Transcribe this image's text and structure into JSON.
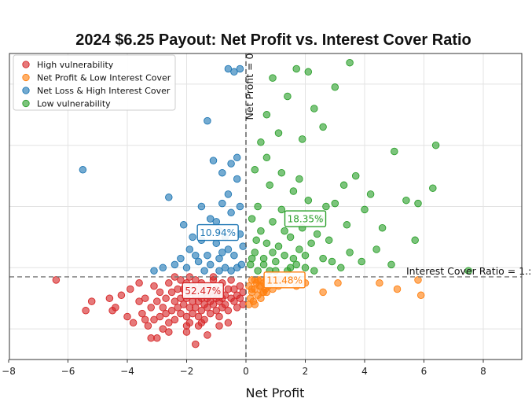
{
  "chart_data": {
    "type": "scatter",
    "title": "2024 $6.25 Payout: Net Profit vs. Interest Cover Ratio",
    "xlabel": "Net Profit",
    "ylabel": "",
    "xlim": [
      -8,
      9.5
    ],
    "ylim": [
      0,
      10
    ],
    "x_ticks": [
      -8,
      -6,
      -4,
      -2,
      0,
      2,
      4,
      6,
      8
    ],
    "x_tick_labels": [
      "−8",
      "−6",
      "−4",
      "−2",
      "0",
      "2",
      "4",
      "6",
      "8"
    ],
    "y_gridlines": [
      1,
      3,
      5,
      7,
      9
    ],
    "grid": true,
    "reference_lines": {
      "vertical": {
        "x": 0,
        "label": "Net Profit = 0"
      },
      "horizontal": {
        "y": 2.7,
        "label": "Interest Cover Ratio = 1.:"
      }
    },
    "legend": {
      "position": "top-left",
      "entries": [
        {
          "name": "High vulnerability",
          "color": "#d62728"
        },
        {
          "name": "Net Profit & Low Interest Cover",
          "color": "#ff7f0e"
        },
        {
          "name": "Net Loss & High Interest Cover",
          "color": "#1f77b4"
        },
        {
          "name": "Low vulnerability",
          "color": "#2ca02c"
        }
      ]
    },
    "annotations": [
      {
        "text": "52.47%",
        "x": -1.45,
        "y": 2.25,
        "color": "#d62728"
      },
      {
        "text": "11.48%",
        "x": 1.3,
        "y": 2.6,
        "color": "#ff7f0e"
      },
      {
        "text": "10.94%",
        "x": -0.95,
        "y": 4.15,
        "color": "#1f77b4"
      },
      {
        "text": "18.35%",
        "x": 2.0,
        "y": 4.6,
        "color": "#2ca02c"
      }
    ],
    "series": [
      {
        "name": "High vulnerability",
        "color": "#d62728",
        "points": [
          [
            -6.4,
            2.6
          ],
          [
            -5.4,
            1.6
          ],
          [
            -5.2,
            1.9
          ],
          [
            -4.6,
            2.0
          ],
          [
            -4.4,
            1.7
          ],
          [
            -4.2,
            2.1
          ],
          [
            -4.0,
            1.4
          ],
          [
            -3.9,
            2.3
          ],
          [
            -3.8,
            1.2
          ],
          [
            -3.6,
            1.9
          ],
          [
            -3.5,
            1.5
          ],
          [
            -3.4,
            2.0
          ],
          [
            -3.3,
            1.1
          ],
          [
            -3.2,
            1.7
          ],
          [
            -3.1,
            2.4
          ],
          [
            -3.0,
            1.9
          ],
          [
            -2.9,
            1.4
          ],
          [
            -2.9,
            2.2
          ],
          [
            -2.8,
            1.7
          ],
          [
            -2.7,
            2.0
          ],
          [
            -2.6,
            1.2
          ],
          [
            -2.6,
            2.5
          ],
          [
            -2.5,
            1.6
          ],
          [
            -2.5,
            2.2
          ],
          [
            -2.4,
            1.9
          ],
          [
            -2.4,
            1.3
          ],
          [
            -2.3,
            2.3
          ],
          [
            -2.3,
            1.7
          ],
          [
            -2.2,
            2.0
          ],
          [
            -2.2,
            1.5
          ],
          [
            -2.2,
            2.6
          ],
          [
            -2.1,
            1.8
          ],
          [
            -2.1,
            2.3
          ],
          [
            -2.0,
            1.4
          ],
          [
            -2.0,
            2.0
          ],
          [
            -2.0,
            2.5
          ],
          [
            -1.9,
            1.7
          ],
          [
            -1.9,
            2.2
          ],
          [
            -1.9,
            1.2
          ],
          [
            -1.8,
            1.9
          ],
          [
            -1.8,
            2.4
          ],
          [
            -1.8,
            1.5
          ],
          [
            -1.7,
            2.1
          ],
          [
            -1.7,
            1.7
          ],
          [
            -1.7,
            2.6
          ],
          [
            -1.6,
            1.9
          ],
          [
            -1.6,
            2.3
          ],
          [
            -1.6,
            1.4
          ],
          [
            -1.5,
            2.0
          ],
          [
            -1.5,
            1.6
          ],
          [
            -1.5,
            2.5
          ],
          [
            -1.4,
            1.8
          ],
          [
            -1.4,
            2.2
          ],
          [
            -1.4,
            1.3
          ],
          [
            -1.3,
            2.0
          ],
          [
            -1.3,
            1.7
          ],
          [
            -1.3,
            2.4
          ],
          [
            -1.2,
            1.9
          ],
          [
            -1.2,
            2.2
          ],
          [
            -1.2,
            1.5
          ],
          [
            -1.1,
            2.1
          ],
          [
            -1.1,
            1.8
          ],
          [
            -1.1,
            2.6
          ],
          [
            -1.0,
            2.0
          ],
          [
            -1.0,
            1.6
          ],
          [
            -1.0,
            2.3
          ],
          [
            -0.9,
            1.9
          ],
          [
            -0.9,
            2.2
          ],
          [
            -0.9,
            1.4
          ],
          [
            -0.8,
            2.0
          ],
          [
            -0.8,
            1.7
          ],
          [
            -0.8,
            2.5
          ],
          [
            -0.7,
            2.1
          ],
          [
            -0.7,
            1.8
          ],
          [
            -0.6,
            2.3
          ],
          [
            -0.6,
            1.6
          ],
          [
            -0.5,
            2.0
          ],
          [
            -0.5,
            2.6
          ],
          [
            -0.4,
            1.9
          ],
          [
            -0.4,
            2.3
          ],
          [
            -0.3,
            2.1
          ],
          [
            -0.3,
            1.7
          ],
          [
            -0.2,
            2.4
          ],
          [
            -0.2,
            2.0
          ],
          [
            -0.1,
            2.2
          ],
          [
            -0.1,
            1.8
          ],
          [
            -2.0,
            0.9
          ],
          [
            -1.6,
            1.1
          ],
          [
            -1.3,
            0.8
          ],
          [
            -2.8,
            1.0
          ],
          [
            -3.4,
            1.3
          ],
          [
            -0.6,
            1.2
          ],
          [
            -1.9,
            2.7
          ],
          [
            -1.1,
            2.7
          ],
          [
            -2.4,
            2.7
          ],
          [
            -3.6,
            2.5
          ],
          [
            -4.5,
            1.6
          ],
          [
            -2.7,
            1.5
          ],
          [
            -1.5,
            1.2
          ],
          [
            -0.9,
            1.1
          ],
          [
            -2.6,
            0.9
          ],
          [
            -3.0,
            0.7
          ],
          [
            -3.1,
            1.3
          ],
          [
            -2.0,
            1.1
          ],
          [
            -1.7,
            0.5
          ],
          [
            -3.2,
            0.7
          ]
        ]
      },
      {
        "name": "Net Profit & Low Interest Cover",
        "color": "#ff7f0e",
        "points": [
          [
            0.1,
            2.4
          ],
          [
            0.15,
            2.0
          ],
          [
            0.2,
            2.6
          ],
          [
            0.25,
            1.9
          ],
          [
            0.3,
            2.3
          ],
          [
            0.35,
            2.5
          ],
          [
            0.4,
            2.1
          ],
          [
            0.45,
            2.4
          ],
          [
            0.5,
            2.6
          ],
          [
            0.55,
            2.2
          ],
          [
            0.6,
            2.5
          ],
          [
            0.65,
            2.3
          ],
          [
            0.7,
            2.6
          ],
          [
            0.75,
            2.4
          ],
          [
            0.8,
            2.5
          ],
          [
            0.9,
            2.3
          ],
          [
            1.0,
            2.6
          ],
          [
            1.1,
            2.4
          ],
          [
            1.2,
            2.6
          ],
          [
            1.3,
            2.5
          ],
          [
            1.5,
            2.6
          ],
          [
            1.7,
            2.4
          ],
          [
            2.0,
            2.5
          ],
          [
            0.2,
            2.2
          ],
          [
            0.3,
            1.8
          ],
          [
            0.4,
            2.6
          ],
          [
            0.5,
            2.0
          ],
          [
            0.6,
            2.2
          ],
          [
            0.1,
            1.8
          ],
          [
            0.3,
            2.6
          ],
          [
            2.6,
            2.2
          ],
          [
            3.1,
            2.5
          ],
          [
            4.5,
            2.5
          ],
          [
            5.1,
            2.3
          ],
          [
            5.8,
            2.6
          ],
          [
            5.9,
            2.1
          ],
          [
            0.9,
            2.6
          ],
          [
            0.5,
            2.4
          ],
          [
            0.2,
            2.3
          ],
          [
            0.7,
            2.2
          ]
        ]
      },
      {
        "name": "Net Loss & High Interest Cover",
        "color": "#1f77b4",
        "points": [
          [
            -5.5,
            6.2
          ],
          [
            -2.6,
            5.3
          ],
          [
            -2.1,
            4.4
          ],
          [
            -1.8,
            4.0
          ],
          [
            -1.5,
            3.9
          ],
          [
            -1.3,
            3.4
          ],
          [
            -1.2,
            4.6
          ],
          [
            -1.0,
            3.8
          ],
          [
            -0.9,
            3.3
          ],
          [
            -0.8,
            5.1
          ],
          [
            -0.7,
            4.0
          ],
          [
            -0.6,
            3.6
          ],
          [
            -0.5,
            4.8
          ],
          [
            -0.4,
            3.4
          ],
          [
            -0.3,
            5.9
          ],
          [
            -0.2,
            4.1
          ],
          [
            -0.15,
            3.1
          ],
          [
            -0.1,
            3.7
          ],
          [
            -1.1,
            6.5
          ],
          [
            -0.8,
            6.1
          ],
          [
            -0.5,
            6.4
          ],
          [
            -0.3,
            6.6
          ],
          [
            -1.3,
            7.8
          ],
          [
            -0.6,
            9.5
          ],
          [
            -0.4,
            9.4
          ],
          [
            -0.2,
            9.5
          ],
          [
            -2.2,
            3.3
          ],
          [
            -2.8,
            3.0
          ],
          [
            -3.1,
            2.9
          ],
          [
            -1.6,
            3.2
          ],
          [
            -0.9,
            2.9
          ],
          [
            -0.5,
            2.9
          ],
          [
            -1.9,
            3.6
          ],
          [
            -1.4,
            2.9
          ],
          [
            -0.7,
            3.0
          ],
          [
            -2.0,
            3.0
          ],
          [
            -1.0,
            4.5
          ],
          [
            -1.5,
            5.0
          ],
          [
            -0.6,
            5.4
          ],
          [
            -1.2,
            3.1
          ],
          [
            -0.8,
            3.5
          ],
          [
            -0.3,
            3.0
          ],
          [
            -0.2,
            5.0
          ],
          [
            -0.9,
            4.2
          ],
          [
            -1.7,
            3.4
          ],
          [
            -2.4,
            3.1
          ]
        ]
      },
      {
        "name": "Low vulnerability",
        "color": "#2ca02c",
        "points": [
          [
            0.15,
            3.1
          ],
          [
            0.3,
            3.5
          ],
          [
            0.4,
            2.9
          ],
          [
            0.5,
            4.2
          ],
          [
            0.6,
            3.3
          ],
          [
            0.7,
            3.8
          ],
          [
            0.8,
            2.9
          ],
          [
            0.9,
            4.5
          ],
          [
            1.0,
            3.2
          ],
          [
            1.1,
            3.7
          ],
          [
            1.2,
            4.9
          ],
          [
            1.3,
            3.4
          ],
          [
            1.4,
            2.9
          ],
          [
            1.5,
            4.0
          ],
          [
            1.6,
            5.5
          ],
          [
            1.7,
            3.1
          ],
          [
            1.8,
            3.6
          ],
          [
            1.9,
            4.3
          ],
          [
            2.0,
            3.0
          ],
          [
            2.1,
            5.2
          ],
          [
            2.2,
            3.8
          ],
          [
            2.3,
            2.9
          ],
          [
            2.5,
            4.6
          ],
          [
            2.6,
            3.3
          ],
          [
            2.8,
            3.9
          ],
          [
            3.0,
            5.1
          ],
          [
            3.2,
            3.0
          ],
          [
            3.4,
            4.4
          ],
          [
            3.5,
            3.5
          ],
          [
            3.7,
            6.0
          ],
          [
            3.9,
            3.2
          ],
          [
            4.2,
            5.4
          ],
          [
            4.6,
            4.3
          ],
          [
            4.9,
            3.1
          ],
          [
            5.0,
            6.8
          ],
          [
            5.4,
            5.2
          ],
          [
            5.7,
            3.9
          ],
          [
            5.8,
            5.1
          ],
          [
            6.3,
            5.6
          ],
          [
            6.4,
            7.0
          ],
          [
            7.5,
            2.9
          ],
          [
            0.2,
            4.6
          ],
          [
            0.3,
            6.2
          ],
          [
            0.5,
            7.1
          ],
          [
            0.7,
            8.0
          ],
          [
            0.9,
            9.2
          ],
          [
            1.1,
            7.4
          ],
          [
            1.4,
            8.6
          ],
          [
            1.7,
            9.5
          ],
          [
            2.1,
            9.4
          ],
          [
            2.3,
            8.2
          ],
          [
            2.6,
            7.6
          ],
          [
            3.0,
            8.9
          ],
          [
            3.5,
            9.7
          ],
          [
            1.9,
            7.2
          ],
          [
            1.2,
            6.1
          ],
          [
            0.8,
            5.7
          ],
          [
            0.4,
            5.0
          ],
          [
            0.6,
            3.1
          ],
          [
            1.0,
            2.9
          ],
          [
            1.3,
            4.2
          ],
          [
            1.6,
            3.3
          ],
          [
            0.35,
            3.9
          ],
          [
            2.4,
            4.1
          ],
          [
            2.9,
            3.2
          ],
          [
            3.3,
            5.7
          ],
          [
            4.0,
            4.9
          ],
          [
            0.2,
            3.3
          ],
          [
            0.9,
            3.5
          ],
          [
            1.5,
            3.0
          ],
          [
            2.0,
            3.4
          ],
          [
            2.7,
            5.0
          ],
          [
            4.4,
            3.6
          ],
          [
            0.7,
            6.6
          ],
          [
            1.8,
            5.9
          ]
        ]
      }
    ]
  }
}
